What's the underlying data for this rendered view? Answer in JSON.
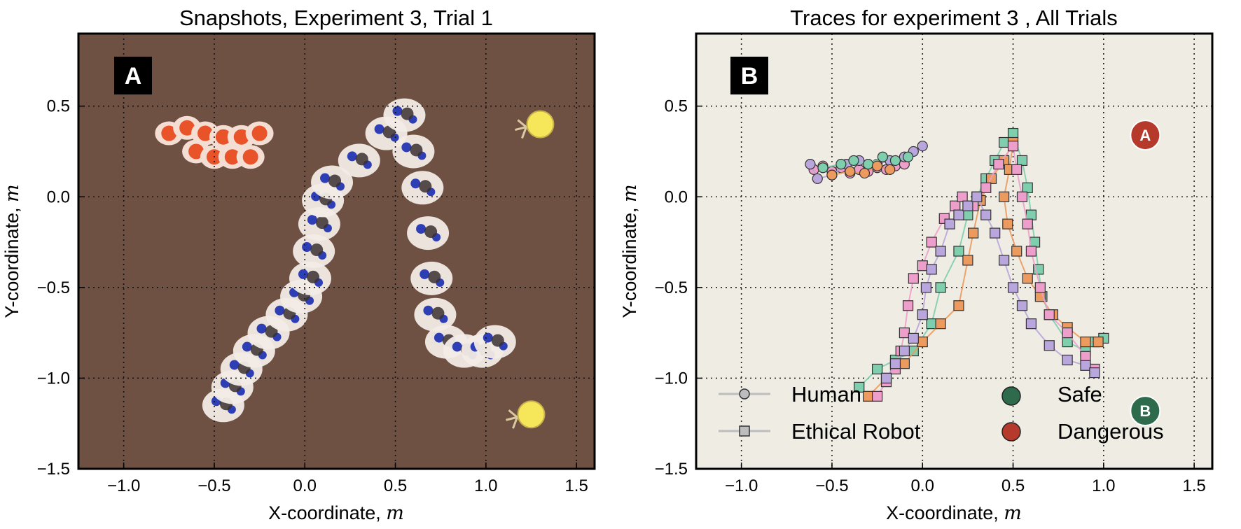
{
  "chart_data": [
    {
      "type": "scatter",
      "panel_label": "A",
      "title": "Snapshots, Experiment 3, Trial 1",
      "xlabel": "X-coordinate, ",
      "xlabel_unit": "m",
      "ylabel": "Y-coordinate, ",
      "ylabel_unit": "m",
      "xlim": [
        -1.25,
        1.6
      ],
      "ylim": [
        -1.5,
        0.9
      ],
      "xticks": [
        -1.0,
        -0.5,
        0.0,
        0.5,
        1.0,
        1.5
      ],
      "yticks": [
        -1.5,
        -1.0,
        -0.5,
        0.0,
        0.5
      ],
      "xtick_labels": [
        "−1.0",
        "−0.5",
        "0.0",
        "0.5",
        "1.0",
        "1.5"
      ],
      "ytick_labels": [
        "−1.5",
        "−1.0",
        "−0.5",
        "0.0",
        "0.5"
      ],
      "grid": true,
      "background_color": "#6e5142",
      "ethical_robot_snapshots": [
        [
          -0.45,
          -1.15
        ],
        [
          -0.4,
          -1.05
        ],
        [
          -0.35,
          -0.95
        ],
        [
          -0.28,
          -0.85
        ],
        [
          -0.2,
          -0.75
        ],
        [
          -0.1,
          -0.65
        ],
        [
          -0.02,
          -0.55
        ],
        [
          0.03,
          -0.45
        ],
        [
          0.05,
          -0.3
        ],
        [
          0.08,
          -0.15
        ],
        [
          0.1,
          -0.02
        ],
        [
          0.15,
          0.08
        ],
        [
          0.3,
          0.2
        ],
        [
          0.45,
          0.35
        ],
        [
          0.55,
          0.45
        ],
        [
          0.6,
          0.25
        ],
        [
          0.65,
          0.05
        ],
        [
          0.68,
          -0.2
        ],
        [
          0.7,
          -0.45
        ],
        [
          0.72,
          -0.65
        ],
        [
          0.78,
          -0.8
        ],
        [
          0.88,
          -0.85
        ],
        [
          0.98,
          -0.85
        ],
        [
          1.05,
          -0.8
        ]
      ],
      "human_snapshots": [
        [
          -0.75,
          0.35
        ],
        [
          -0.65,
          0.38
        ],
        [
          -0.55,
          0.35
        ],
        [
          -0.45,
          0.33
        ],
        [
          -0.35,
          0.33
        ],
        [
          -0.25,
          0.35
        ],
        [
          -0.6,
          0.25
        ],
        [
          -0.5,
          0.22
        ],
        [
          -0.4,
          0.22
        ],
        [
          -0.3,
          0.22
        ]
      ],
      "goal_markers": [
        {
          "x": 1.3,
          "y": 0.4
        },
        {
          "x": 1.25,
          "y": -1.2
        }
      ],
      "colors": {
        "robot_body": "#f2ebe6",
        "robot_accent": "#2e3fb6",
        "human_body": "#e8532a",
        "goal": "#f5e65a"
      }
    },
    {
      "type": "line",
      "panel_label": "B",
      "title": "Traces for experiment 3 , All Trials",
      "xlabel": "X-coordinate, ",
      "xlabel_unit": "m",
      "ylabel": "Y-coordinate, ",
      "ylabel_unit": "m",
      "xlim": [
        -1.25,
        1.6
      ],
      "ylim": [
        -1.5,
        0.9
      ],
      "xticks": [
        -1.0,
        -0.5,
        0.0,
        0.5,
        1.0,
        1.5
      ],
      "yticks": [
        -1.5,
        -1.0,
        -0.5,
        0.0,
        0.5
      ],
      "xtick_labels": [
        "−1.0",
        "−0.5",
        "0.0",
        "0.5",
        "1.0",
        "1.5"
      ],
      "ytick_labels": [
        "−1.5",
        "−1.0",
        "−0.5",
        "0.0",
        "0.5"
      ],
      "grid": true,
      "background_color": "#efece4",
      "series": [
        {
          "name": "Ethical Robot",
          "marker": "square",
          "color": "#7fcfae",
          "x": [
            -0.35,
            -0.25,
            -0.15,
            -0.05,
            0.05,
            0.1,
            0.2,
            0.25,
            0.3,
            0.35,
            0.4,
            0.45,
            0.5,
            0.55,
            0.58,
            0.6,
            0.62,
            0.64,
            0.66,
            0.7,
            0.8,
            0.9,
            0.95,
            1.0
          ],
          "y": [
            -1.05,
            -0.95,
            -0.9,
            -0.85,
            -0.7,
            -0.5,
            -0.3,
            -0.1,
            0.0,
            0.1,
            0.2,
            0.3,
            0.35,
            0.2,
            0.05,
            -0.1,
            -0.25,
            -0.4,
            -0.55,
            -0.65,
            -0.8,
            -0.85,
            -0.8,
            -0.78
          ]
        },
        {
          "name": "",
          "marker": "square",
          "color": "#ec9a5e",
          "x": [
            -0.3,
            -0.2,
            -0.1,
            0.0,
            0.1,
            0.2,
            0.25,
            0.28,
            0.32,
            0.38,
            0.45,
            0.5,
            0.48,
            0.45,
            0.47,
            0.52,
            0.58,
            0.65,
            0.72,
            0.8,
            0.9,
            0.97
          ],
          "y": [
            -1.1,
            -1.0,
            -0.92,
            -0.8,
            -0.7,
            -0.6,
            -0.35,
            -0.2,
            -0.02,
            0.1,
            0.2,
            0.3,
            0.15,
            0.0,
            -0.15,
            -0.3,
            -0.45,
            -0.55,
            -0.65,
            -0.72,
            -0.8,
            -0.8
          ]
        },
        {
          "name": "",
          "marker": "square",
          "color": "#ee9ecb",
          "x": [
            -0.25,
            -0.2,
            -0.15,
            -0.12,
            -0.1,
            -0.08,
            -0.05,
            0.0,
            0.05,
            0.12,
            0.18,
            0.22,
            0.28,
            0.35,
            0.42,
            0.5,
            0.52,
            0.55,
            0.58,
            0.6,
            0.65,
            0.7,
            0.8,
            0.9,
            0.95
          ],
          "y": [
            -1.1,
            -1.02,
            -0.95,
            -0.85,
            -0.75,
            -0.6,
            -0.45,
            -0.38,
            -0.25,
            -0.12,
            -0.05,
            0.0,
            -0.05,
            0.05,
            0.18,
            0.28,
            0.15,
            0.0,
            -0.15,
            -0.3,
            -0.5,
            -0.65,
            -0.75,
            -0.88,
            -0.95
          ]
        },
        {
          "name": "",
          "marker": "square",
          "color": "#b9a6dc",
          "x": [
            -0.2,
            -0.15,
            -0.1,
            -0.05,
            0.0,
            0.02,
            0.05,
            0.1,
            0.15,
            0.2,
            0.25,
            0.3,
            0.35,
            0.4,
            0.45,
            0.5,
            0.55,
            0.6,
            0.7,
            0.8,
            0.9,
            0.95
          ],
          "y": [
            -1.0,
            -0.92,
            -0.85,
            -0.78,
            -0.65,
            -0.5,
            -0.4,
            -0.3,
            -0.15,
            -0.1,
            -0.05,
            0.0,
            -0.1,
            -0.2,
            -0.35,
            -0.5,
            -0.6,
            -0.7,
            -0.82,
            -0.9,
            -0.93,
            -0.97
          ]
        },
        {
          "name": "Human",
          "marker": "circle",
          "color": "#ee9ecb",
          "x": [
            -0.6,
            -0.55,
            -0.5,
            -0.45,
            -0.4,
            -0.35,
            -0.3,
            -0.25,
            -0.2,
            -0.15,
            -0.1
          ],
          "y": [
            0.15,
            0.17,
            0.14,
            0.16,
            0.13,
            0.15,
            0.14,
            0.16,
            0.15,
            0.17,
            0.18
          ]
        },
        {
          "name": "",
          "marker": "circle",
          "color": "#b9a6dc",
          "x": [
            -0.62,
            -0.58,
            -0.5,
            -0.42,
            -0.35,
            -0.25,
            -0.18,
            -0.1,
            -0.05,
            0.0
          ],
          "y": [
            0.18,
            0.1,
            0.12,
            0.18,
            0.2,
            0.18,
            0.2,
            0.22,
            0.25,
            0.28
          ]
        },
        {
          "name": "",
          "marker": "circle",
          "color": "#7fcfae",
          "x": [
            -0.55,
            -0.45,
            -0.38,
            -0.3,
            -0.22,
            -0.15,
            -0.08
          ],
          "y": [
            0.16,
            0.18,
            0.2,
            0.18,
            0.22,
            0.2,
            0.22
          ]
        },
        {
          "name": "",
          "marker": "circle",
          "color": "#ec9a5e",
          "x": [
            -0.5,
            -0.4,
            -0.32,
            -0.25,
            -0.18
          ],
          "y": [
            0.12,
            0.14,
            0.13,
            0.17,
            0.15
          ]
        }
      ],
      "goals": [
        {
          "label": "A",
          "x": 1.23,
          "y": 0.34,
          "kind": "Dangerous",
          "color": "#b63a2c"
        },
        {
          "label": "B",
          "x": 1.23,
          "y": -1.18,
          "kind": "Safe",
          "color": "#2e6b4c"
        }
      ],
      "legend": {
        "placement": "lower-center",
        "entries": [
          {
            "label": "Human",
            "marker": "circle"
          },
          {
            "label": "Ethical Robot",
            "marker": "square"
          },
          {
            "label": "Safe",
            "marker": "big-circle",
            "color": "#2e6b4c"
          },
          {
            "label": "Dangerous",
            "marker": "big-circle",
            "color": "#b63a2c"
          }
        ]
      }
    }
  ]
}
